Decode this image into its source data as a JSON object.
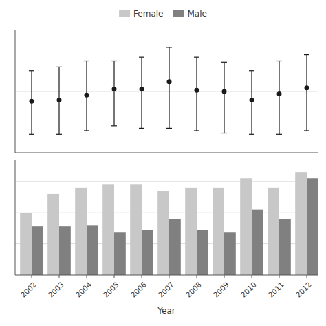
{
  "chart_data": [
    {
      "type": "dot",
      "categories": [
        "2002",
        "2003",
        "2004",
        "2005",
        "2006",
        "2007",
        "2008",
        "2009",
        "2010",
        "2011",
        "2012"
      ],
      "values": [
        42,
        43,
        47,
        52,
        52,
        58,
        51,
        50,
        43,
        48,
        53
      ],
      "ci_lower": [
        15,
        15,
        18,
        22,
        20,
        20,
        18,
        16,
        15,
        15,
        18
      ],
      "ci_upper": [
        67,
        70,
        75,
        75,
        78,
        86,
        78,
        74,
        67,
        75,
        80
      ],
      "color": "#1a1a1a",
      "marker": "circle",
      "ylim": [
        0,
        100
      ],
      "yticks": [
        25,
        50,
        75
      ],
      "grid": true,
      "tick_labels": false
    },
    {
      "type": "bar",
      "categories": [
        "2002",
        "2003",
        "2004",
        "2005",
        "2006",
        "2007",
        "2008",
        "2009",
        "2010",
        "2011",
        "2012"
      ],
      "series": [
        {
          "name": "Female",
          "color": "#c8c8c8",
          "values": [
            100,
            130,
            140,
            145,
            145,
            135,
            140,
            140,
            155,
            140,
            165
          ]
        },
        {
          "name": "Male",
          "color": "#808080",
          "values": [
            78,
            78,
            80,
            68,
            72,
            90,
            72,
            68,
            105,
            90,
            155
          ]
        }
      ],
      "xlabel": "Year",
      "ylim": [
        0,
        185
      ],
      "yticks": [
        50,
        100,
        150
      ],
      "grid": true,
      "tick_labels": "x",
      "legend": "top"
    }
  ]
}
